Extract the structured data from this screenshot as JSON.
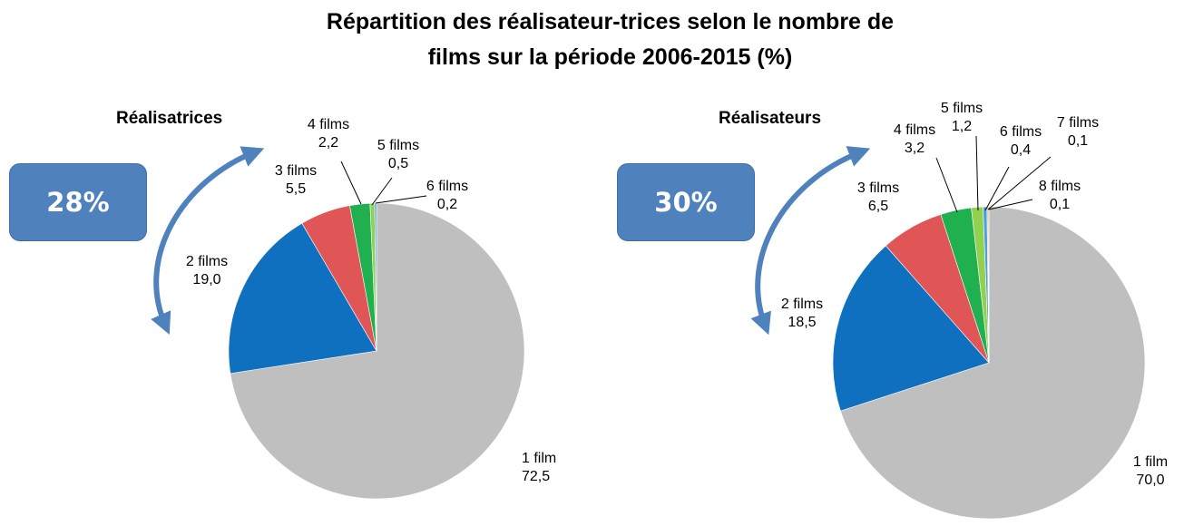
{
  "title_line1": "Répartition des réalisateur-trices selon le nombre de",
  "title_line2": "films sur la période 2006-2015 (%)",
  "chart_data": [
    {
      "type": "pie",
      "subtitle": "Réalisatrices",
      "badge": "28%",
      "categories": [
        "1 film",
        "2 films",
        "3 films",
        "4 films",
        "5 films",
        "6 films"
      ],
      "values": [
        72.5,
        19.0,
        5.5,
        2.2,
        0.5,
        0.2
      ],
      "value_labels": [
        "72,5",
        "19,0",
        "5,5",
        "2,2",
        "0,5",
        "0,2"
      ],
      "colors": [
        "#bfbfbf",
        "#1070c0",
        "#e05555",
        "#20b050",
        "#92d050",
        "#4a9fe0"
      ]
    },
    {
      "type": "pie",
      "subtitle": "Réalisateurs",
      "badge": "30%",
      "categories": [
        "1 film",
        "2 films",
        "3 films",
        "4 films",
        "5 films",
        "6 films",
        "7 films",
        "8 films"
      ],
      "values": [
        70.0,
        18.5,
        6.5,
        3.2,
        1.2,
        0.4,
        0.1,
        0.1
      ],
      "value_labels": [
        "70,0",
        "18,5",
        "6,5",
        "3,2",
        "1,2",
        "0,4",
        "0,1",
        "0,1"
      ],
      "colors": [
        "#bfbfbf",
        "#1070c0",
        "#e05555",
        "#20b050",
        "#92d050",
        "#4a9fe0",
        "#7f7f7f",
        "#f0a020"
      ]
    }
  ]
}
